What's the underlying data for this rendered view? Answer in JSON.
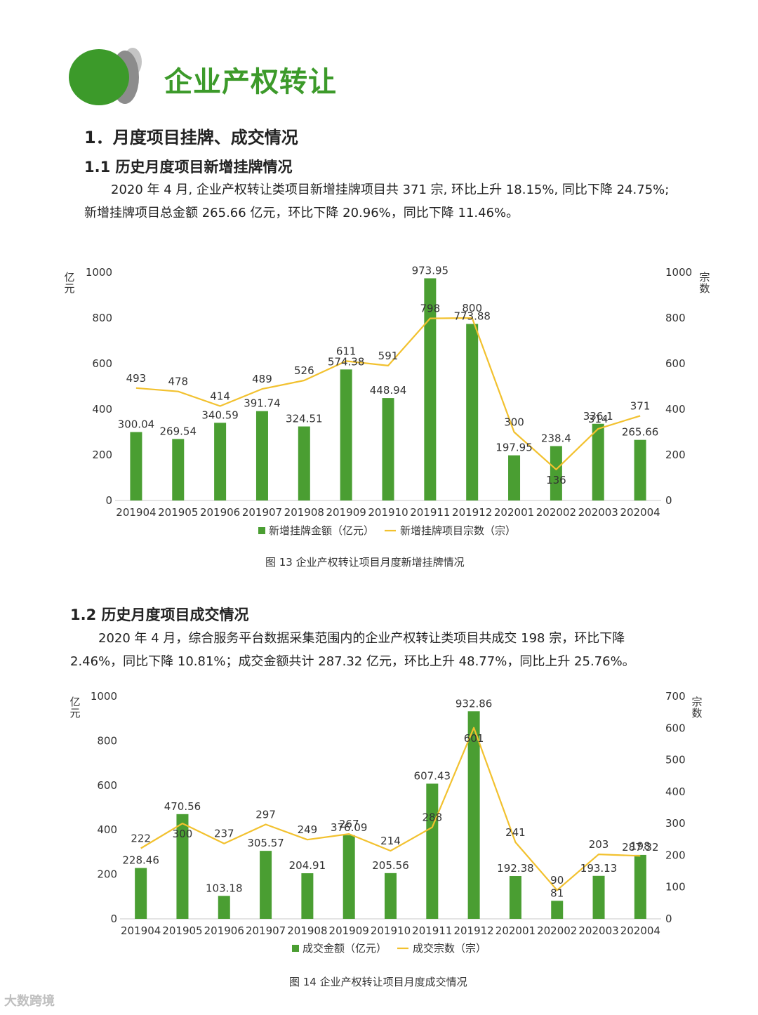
{
  "header": {
    "title": "企业产权转让"
  },
  "section1": {
    "heading": "1．月度项目挂牌、成交情况"
  },
  "sub11": {
    "heading": "1.1  历史月度项目新增挂牌情况",
    "line1": "2020 年 4 月, 企业产权转让类项目新增挂牌项目共 371 宗, 环比上升 18.15%, 同比下降 24.75%;",
    "line2": "新增挂牌项目总金额 265.66 亿元，环比下降 20.96%，同比下降 11.46%。"
  },
  "sub12": {
    "heading": "1.2  历史月度项目成交情况",
    "line1": "2020  年  4  月，综合服务平台数据采集范围内的企业产权转让类项目共成交  198  宗，环比下降",
    "line2": "2.46%，同比下降 10.81%；成交金额共计 287.32 亿元，环比上升 48.77%，同比上升 25.76%。"
  },
  "chart_data": [
    {
      "type": "bar+line",
      "caption": "图 13  企业产权转让项目月度新增挂牌情况",
      "categories": [
        "201904",
        "201905",
        "201906",
        "201907",
        "201908",
        "201909",
        "201910",
        "201911",
        "201912",
        "202001",
        "202002",
        "202003",
        "202004"
      ],
      "left_axis_label": "亿元",
      "right_axis_label": "宗数",
      "left_ylim": [
        0,
        1000
      ],
      "right_ylim": [
        0,
        1000
      ],
      "left_ticks": [
        0,
        200,
        400,
        600,
        800,
        1000
      ],
      "right_ticks": [
        0,
        200,
        400,
        600,
        800,
        1000
      ],
      "series": [
        {
          "name": "新增挂牌金额（亿元）",
          "kind": "bar",
          "axis": "left",
          "values": [
            300.04,
            269.54,
            340.59,
            391.74,
            324.51,
            574.38,
            448.94,
            973.95,
            773.88,
            197.95,
            238.4,
            336.1,
            265.66
          ]
        },
        {
          "name": "新增挂牌项目宗数（宗）",
          "kind": "line",
          "axis": "right",
          "values": [
            493,
            478,
            414,
            489,
            526,
            611,
            591,
            798,
            800,
            300,
            136,
            314,
            371
          ]
        }
      ],
      "colors": {
        "bar": "#4a9e32",
        "line": "#f2c12e"
      },
      "legend_position": "bottom",
      "grid": false
    },
    {
      "type": "bar+line",
      "caption": "图 14  企业产权转让项目月度成交情况",
      "categories": [
        "201904",
        "201905",
        "201906",
        "201907",
        "201908",
        "201909",
        "201910",
        "201911",
        "201912",
        "202001",
        "202002",
        "202003",
        "202004"
      ],
      "left_axis_label": "亿元",
      "right_axis_label": "宗数",
      "left_ylim": [
        0,
        1000
      ],
      "right_ylim": [
        0,
        700
      ],
      "left_ticks": [
        0,
        200,
        400,
        600,
        800,
        1000
      ],
      "right_ticks": [
        0,
        100,
        200,
        300,
        400,
        500,
        600,
        700
      ],
      "series": [
        {
          "name": "成交金额（亿元）",
          "kind": "bar",
          "axis": "left",
          "values": [
            228.46,
            470.56,
            103.18,
            305.57,
            204.91,
            376.09,
            205.56,
            607.43,
            932.86,
            192.38,
            81,
            193.13,
            287.32
          ]
        },
        {
          "name": "成交宗数（宗）",
          "kind": "line",
          "axis": "right",
          "values": [
            222,
            300,
            237,
            297,
            249,
            267,
            214,
            288,
            601,
            241,
            90,
            203,
            198
          ]
        }
      ],
      "colors": {
        "bar": "#4a9e32",
        "line": "#f2c12e"
      },
      "legend_position": "bottom",
      "grid": false
    }
  ],
  "watermark": "大数跨境"
}
